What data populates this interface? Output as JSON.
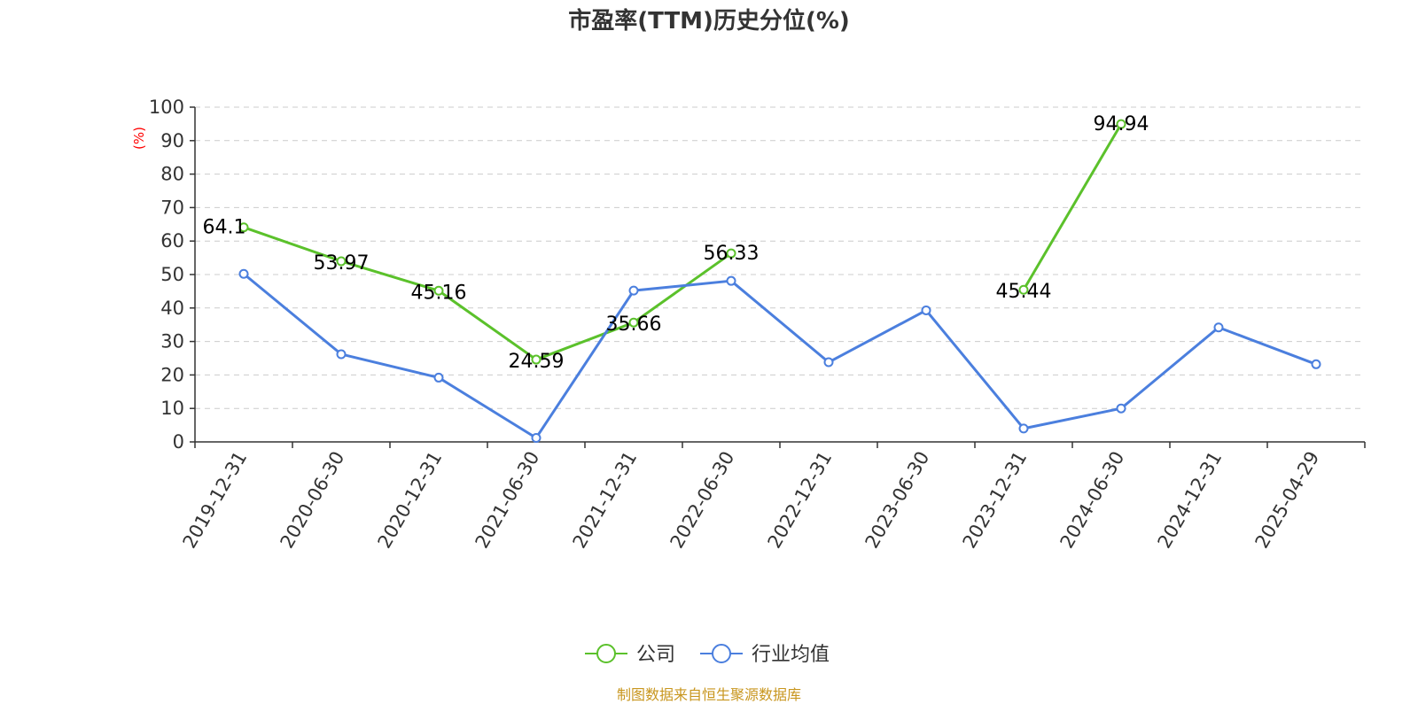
{
  "chart_data": {
    "type": "line",
    "title": "市盈率(TTM)历史分位(%)",
    "ylabel": "(%)",
    "xlabel": "",
    "ylim": [
      0,
      100
    ],
    "yticks": [
      "0",
      "10",
      "20",
      "30",
      "40",
      "50",
      "60",
      "70",
      "80",
      "90",
      "100"
    ],
    "categories": [
      "2019-12-31",
      "2020-06-30",
      "2020-12-31",
      "2021-06-30",
      "2021-12-31",
      "2022-06-30",
      "2022-12-31",
      "2023-06-30",
      "2023-12-31",
      "2024-06-30",
      "2024-12-31",
      "2025-04-29"
    ],
    "grid": true,
    "legend_position": "bottom-center",
    "series": [
      {
        "name": "公司",
        "color": "#5bc12b",
        "values": [
          64.1,
          53.97,
          45.16,
          24.59,
          35.66,
          56.33,
          null,
          null,
          45.44,
          94.94,
          null,
          null
        ],
        "labels": [
          "64.1",
          "53.97",
          "45.16",
          "24.59",
          "35.66",
          "56.33",
          null,
          null,
          "45.44",
          "94.94",
          null,
          null
        ]
      },
      {
        "name": "行业均值",
        "color": "#4b7fde",
        "values": [
          50.2,
          26.2,
          19.2,
          1.2,
          45.2,
          48.1,
          23.8,
          39.3,
          4.0,
          10.0,
          34.2,
          23.2
        ],
        "labels": []
      }
    ]
  },
  "footer": {
    "source": "制图数据来自恒生聚源数据库"
  },
  "colors": {
    "title": "#333333",
    "axis": "#333333",
    "grid": "#cccccc",
    "ylabel": "#ff0000",
    "source": "#c8961e"
  }
}
